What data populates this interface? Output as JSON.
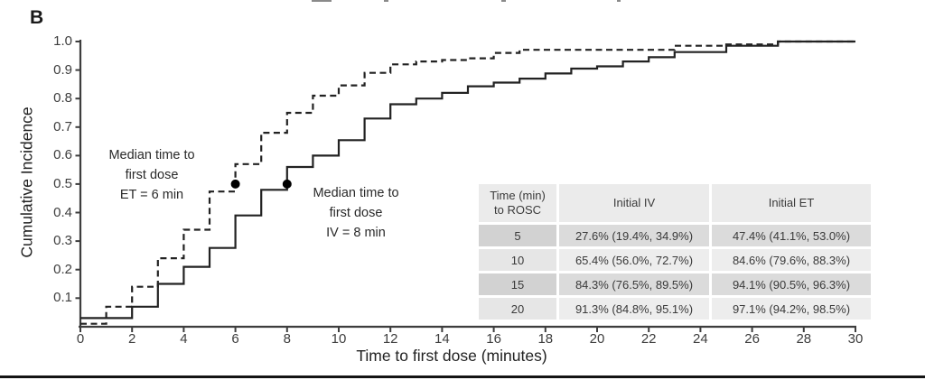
{
  "panel_label": "B",
  "chart_data": {
    "type": "line",
    "line_shape": "step-after",
    "title": "",
    "xlabel": "Time to first dose (minutes)",
    "ylabel": "Cumulative Incidence",
    "xlim": [
      0,
      30
    ],
    "ylim": [
      0,
      1.0
    ],
    "xticks": [
      0,
      2,
      4,
      6,
      8,
      10,
      12,
      14,
      16,
      18,
      20,
      22,
      24,
      26,
      28,
      30
    ],
    "ytick_labels": [
      "1.0",
      "0.9",
      "0.8",
      "0.7",
      "0.6",
      "0.5",
      "0.4",
      "0.3",
      "0.2",
      "0.1"
    ],
    "grid": false,
    "legend": false,
    "series": [
      {
        "name": "Initial ET",
        "line_style": "dashed",
        "x": [
          0,
          1,
          2,
          3,
          4,
          5,
          6,
          7,
          8,
          9,
          10,
          11,
          12,
          13,
          14,
          15,
          16,
          17,
          23,
          25,
          27,
          30
        ],
        "y": [
          0.01,
          0.07,
          0.14,
          0.24,
          0.34,
          0.474,
          0.57,
          0.68,
          0.75,
          0.81,
          0.846,
          0.89,
          0.92,
          0.93,
          0.935,
          0.941,
          0.96,
          0.971,
          0.985,
          0.99,
          1.0,
          1.0
        ]
      },
      {
        "name": "Initial IV",
        "line_style": "solid",
        "x": [
          0,
          2,
          3,
          4,
          5,
          6,
          7,
          8,
          9,
          10,
          11,
          12,
          13,
          14,
          15,
          16,
          17,
          18,
          19,
          20,
          21,
          22,
          23,
          25,
          27,
          30
        ],
        "y": [
          0.03,
          0.07,
          0.15,
          0.21,
          0.276,
          0.39,
          0.48,
          0.56,
          0.6,
          0.654,
          0.73,
          0.78,
          0.8,
          0.82,
          0.843,
          0.856,
          0.87,
          0.888,
          0.905,
          0.913,
          0.93,
          0.945,
          0.963,
          0.985,
          1.0,
          1.0
        ]
      }
    ],
    "markers": [
      {
        "series": "Initial ET",
        "x": 6,
        "y": 0.5,
        "label": "Median time to\nfirst dose\nET = 6 min"
      },
      {
        "series": "Initial IV",
        "x": 8,
        "y": 0.5,
        "label": "Median time to\nfirst dose\nIV = 8 min"
      }
    ]
  },
  "table": {
    "headers": [
      "Time (min)\nto ROSC",
      "Initial IV",
      "Initial ET"
    ],
    "rows": [
      [
        "5",
        "27.6% (19.4%, 34.9%)",
        "47.4% (41.1%, 53.0%)"
      ],
      [
        "10",
        "65.4% (56.0%, 72.7%)",
        "84.6% (79.6%, 88.3%)"
      ],
      [
        "15",
        "84.3% (76.5%, 89.5%)",
        "94.1% (90.5%, 96.3%)"
      ],
      [
        "20",
        "91.3% (84.8%, 95.1%)",
        "97.1% (94.2%, 98.5%)"
      ]
    ]
  },
  "colors": {
    "curve": "#222222",
    "axis": "#3d3d3d",
    "marker": "#000000",
    "table_header_bg": "#ebebeb",
    "table_row_dark_bg": "#dbdbdb",
    "table_row_light_bg": "#ededed",
    "bottom_rule": "#141414"
  }
}
